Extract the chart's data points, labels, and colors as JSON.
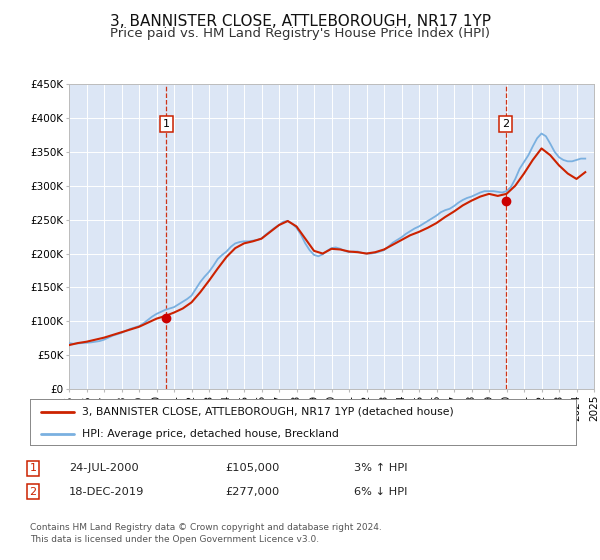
{
  "title": "3, BANNISTER CLOSE, ATTLEBOROUGH, NR17 1YP",
  "subtitle": "Price paid vs. HM Land Registry's House Price Index (HPI)",
  "title_fontsize": 11,
  "subtitle_fontsize": 9.5,
  "background_color": "#ffffff",
  "plot_bg_color": "#dce6f5",
  "grid_color": "#ffffff",
  "hpi_color": "#7ab0e0",
  "price_color": "#cc2200",
  "marker_color": "#cc0000",
  "dashed_line_color": "#cc2200",
  "ylim": [
    0,
    450000
  ],
  "xlim_start": 1995,
  "xlim_end": 2025,
  "yticks": [
    0,
    50000,
    100000,
    150000,
    200000,
    250000,
    300000,
    350000,
    400000,
    450000
  ],
  "ytick_labels": [
    "£0",
    "£50K",
    "£100K",
    "£150K",
    "£200K",
    "£250K",
    "£300K",
    "£350K",
    "£400K",
    "£450K"
  ],
  "event1_x": 2000.55,
  "event1_y": 105000,
  "event1_label": "1",
  "event1_date": "24-JUL-2000",
  "event1_price": "£105,000",
  "event1_hpi": "3% ↑ HPI",
  "event2_x": 2019.96,
  "event2_y": 277000,
  "event2_label": "2",
  "event2_date": "18-DEC-2019",
  "event2_price": "£277,000",
  "event2_hpi": "6% ↓ HPI",
  "legend_line1": "3, BANNISTER CLOSE, ATTLEBOROUGH, NR17 1YP (detached house)",
  "legend_line2": "HPI: Average price, detached house, Breckland",
  "footer1": "Contains HM Land Registry data © Crown copyright and database right 2024.",
  "footer2": "This data is licensed under the Open Government Licence v3.0.",
  "hpi_data_x": [
    1995.0,
    1995.25,
    1995.5,
    1995.75,
    1996.0,
    1996.25,
    1996.5,
    1996.75,
    1997.0,
    1997.25,
    1997.5,
    1997.75,
    1998.0,
    1998.25,
    1998.5,
    1998.75,
    1999.0,
    1999.25,
    1999.5,
    1999.75,
    2000.0,
    2000.25,
    2000.5,
    2000.75,
    2001.0,
    2001.25,
    2001.5,
    2001.75,
    2002.0,
    2002.25,
    2002.5,
    2002.75,
    2003.0,
    2003.25,
    2003.5,
    2003.75,
    2004.0,
    2004.25,
    2004.5,
    2004.75,
    2005.0,
    2005.25,
    2005.5,
    2005.75,
    2006.0,
    2006.25,
    2006.5,
    2006.75,
    2007.0,
    2007.25,
    2007.5,
    2007.75,
    2008.0,
    2008.25,
    2008.5,
    2008.75,
    2009.0,
    2009.25,
    2009.5,
    2009.75,
    2010.0,
    2010.25,
    2010.5,
    2010.75,
    2011.0,
    2011.25,
    2011.5,
    2011.75,
    2012.0,
    2012.25,
    2012.5,
    2012.75,
    2013.0,
    2013.25,
    2013.5,
    2013.75,
    2014.0,
    2014.25,
    2014.5,
    2014.75,
    2015.0,
    2015.25,
    2015.5,
    2015.75,
    2016.0,
    2016.25,
    2016.5,
    2016.75,
    2017.0,
    2017.25,
    2017.5,
    2017.75,
    2018.0,
    2018.25,
    2018.5,
    2018.75,
    2019.0,
    2019.25,
    2019.5,
    2019.75,
    2020.0,
    2020.25,
    2020.5,
    2020.75,
    2021.0,
    2021.25,
    2021.5,
    2021.75,
    2022.0,
    2022.25,
    2022.5,
    2022.75,
    2023.0,
    2023.25,
    2023.5,
    2023.75,
    2024.0,
    2024.25,
    2024.5
  ],
  "hpi_data_y": [
    68000,
    67000,
    67500,
    68000,
    68500,
    69000,
    70000,
    71000,
    73000,
    76000,
    79000,
    81000,
    83000,
    86000,
    89000,
    91000,
    93000,
    97000,
    102000,
    107000,
    111000,
    114000,
    117000,
    119000,
    121000,
    125000,
    129000,
    133000,
    138000,
    148000,
    158000,
    166000,
    173000,
    182000,
    192000,
    198000,
    203000,
    210000,
    215000,
    217000,
    218000,
    218000,
    219000,
    220000,
    222000,
    228000,
    233000,
    238000,
    242000,
    247000,
    248000,
    244000,
    238000,
    228000,
    215000,
    205000,
    198000,
    196000,
    199000,
    204000,
    208000,
    209000,
    207000,
    204000,
    202000,
    203000,
    203000,
    201000,
    200000,
    200000,
    201000,
    203000,
    205000,
    210000,
    216000,
    220000,
    224000,
    229000,
    233000,
    237000,
    240000,
    244000,
    248000,
    252000,
    256000,
    261000,
    264000,
    266000,
    270000,
    275000,
    279000,
    282000,
    284000,
    287000,
    290000,
    292000,
    292000,
    292000,
    291000,
    290000,
    292000,
    298000,
    310000,
    325000,
    335000,
    345000,
    358000,
    370000,
    377000,
    373000,
    362000,
    350000,
    342000,
    338000,
    336000,
    336000,
    338000,
    340000,
    340000
  ],
  "price_data_x": [
    1995.0,
    1995.5,
    1996.0,
    1996.5,
    1997.0,
    1997.5,
    1998.0,
    1998.5,
    1999.0,
    1999.5,
    2000.0,
    2000.5,
    2001.0,
    2001.5,
    2002.0,
    2002.5,
    2003.0,
    2003.5,
    2004.0,
    2004.5,
    2005.0,
    2005.5,
    2006.0,
    2006.5,
    2007.0,
    2007.5,
    2008.0,
    2008.5,
    2009.0,
    2009.5,
    2010.0,
    2010.5,
    2011.0,
    2011.5,
    2012.0,
    2012.5,
    2013.0,
    2013.5,
    2014.0,
    2014.5,
    2015.0,
    2015.5,
    2016.0,
    2016.5,
    2017.0,
    2017.5,
    2018.0,
    2018.5,
    2019.0,
    2019.5,
    2020.0,
    2020.5,
    2021.0,
    2021.5,
    2022.0,
    2022.5,
    2023.0,
    2023.5,
    2024.0,
    2024.5
  ],
  "price_data_y": [
    65000,
    68000,
    70000,
    73000,
    76000,
    80000,
    84000,
    88000,
    92000,
    98000,
    104000,
    108000,
    113000,
    119000,
    128000,
    143000,
    160000,
    178000,
    195000,
    208000,
    215000,
    218000,
    222000,
    232000,
    242000,
    248000,
    240000,
    222000,
    204000,
    200000,
    207000,
    206000,
    203000,
    202000,
    200000,
    202000,
    206000,
    213000,
    220000,
    227000,
    232000,
    238000,
    245000,
    254000,
    262000,
    271000,
    278000,
    284000,
    288000,
    285000,
    288000,
    300000,
    318000,
    338000,
    355000,
    345000,
    330000,
    318000,
    310000,
    320000
  ],
  "xticks": [
    1995,
    1996,
    1997,
    1998,
    1999,
    2000,
    2001,
    2002,
    2003,
    2004,
    2005,
    2006,
    2007,
    2008,
    2009,
    2010,
    2011,
    2012,
    2013,
    2014,
    2015,
    2016,
    2017,
    2018,
    2019,
    2020,
    2021,
    2022,
    2023,
    2024,
    2025
  ]
}
